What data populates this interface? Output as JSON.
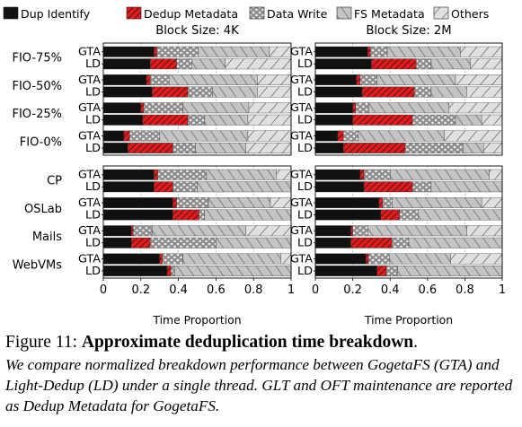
{
  "legend": [
    {
      "key": "dup",
      "label": "Dup Identify",
      "color": "#111111",
      "pattern": "solid"
    },
    {
      "key": "meta",
      "label": "Dedup Metadata",
      "color": "#e41a1c",
      "pattern": "hatch"
    },
    {
      "key": "write",
      "label": "Data Write",
      "color": "#8c8c8c",
      "pattern": "dots"
    },
    {
      "key": "fs",
      "label": "FS Metadata",
      "color": "#c4c4c4",
      "pattern": "slash"
    },
    {
      "key": "other",
      "label": "Others",
      "color": "#e0e0e0",
      "pattern": "backslash"
    }
  ],
  "caption": {
    "label": "Figure 11:",
    "title": "Approximate deduplication time breakdown",
    "period": ".",
    "body": "We compare normalized breakdown performance between GogetaFS (GTA) and Light-Dedup (LD) under a single thread. GLT and OFT maintenance are reported as Dedup Metadata for GogetaFS."
  },
  "chart_data": [
    {
      "type": "bar",
      "orientation": "horizontal",
      "stacked": true,
      "title": "Block Size: 4K",
      "xlabel": "Time Proportion",
      "xlim": [
        0,
        1
      ],
      "xticks": [
        "0",
        "0.2",
        "0.4",
        "0.6",
        "0.8",
        "1"
      ],
      "grid": "vertical dotted",
      "groups": [
        {
          "name": "FIO-75%",
          "bars": [
            {
              "system": "GTA",
              "segments": [
                0.27,
                0.015,
                0.22,
                0.38,
                0.115
              ]
            },
            {
              "system": "LD",
              "segments": [
                0.25,
                0.14,
                0.08,
                0.18,
                0.35
              ]
            }
          ]
        },
        {
          "name": "FIO-50%",
          "bars": [
            {
              "system": "GTA",
              "segments": [
                0.23,
                0.02,
                0.1,
                0.47,
                0.18
              ]
            },
            {
              "system": "LD",
              "segments": [
                0.26,
                0.19,
                0.13,
                0.24,
                0.18
              ]
            }
          ]
        },
        {
          "name": "FIO-25%",
          "bars": [
            {
              "system": "GTA",
              "segments": [
                0.2,
                0.015,
                0.21,
                0.35,
                0.225
              ]
            },
            {
              "system": "LD",
              "segments": [
                0.21,
                0.24,
                0.09,
                0.23,
                0.23
              ]
            }
          ]
        },
        {
          "name": "FIO-0%",
          "bars": [
            {
              "system": "GTA",
              "segments": [
                0.11,
                0.03,
                0.16,
                0.47,
                0.23
              ]
            },
            {
              "system": "LD",
              "segments": [
                0.13,
                0.24,
                0.12,
                0.27,
                0.24
              ]
            }
          ]
        }
      ]
    },
    {
      "type": "bar",
      "orientation": "horizontal",
      "stacked": true,
      "title": "Block Size: 2M",
      "xlabel": "Time Proportion",
      "xlim": [
        0,
        1
      ],
      "xticks": [
        "0",
        "0.2",
        "0.4",
        "0.6",
        "0.8",
        "1"
      ],
      "grid": "vertical dotted",
      "groups": [
        {
          "name": "FIO-75%",
          "bars": [
            {
              "system": "GTA",
              "segments": [
                0.28,
                0.015,
                0.09,
                0.39,
                0.225
              ]
            },
            {
              "system": "LD",
              "segments": [
                0.3,
                0.24,
                0.08,
                0.21,
                0.17
              ]
            }
          ]
        },
        {
          "name": "FIO-50%",
          "bars": [
            {
              "system": "GTA",
              "segments": [
                0.22,
                0.02,
                0.09,
                0.42,
                0.25
              ]
            },
            {
              "system": "LD",
              "segments": [
                0.25,
                0.28,
                0.09,
                0.19,
                0.19
              ]
            }
          ]
        },
        {
          "name": "FIO-25%",
          "bars": [
            {
              "system": "GTA",
              "segments": [
                0.2,
                0.015,
                0.07,
                0.43,
                0.285
              ]
            },
            {
              "system": "LD",
              "segments": [
                0.2,
                0.32,
                0.23,
                0.14,
                0.11
              ]
            }
          ]
        },
        {
          "name": "FIO-0%",
          "bars": [
            {
              "system": "GTA",
              "segments": [
                0.12,
                0.03,
                0.08,
                0.46,
                0.31
              ]
            },
            {
              "system": "LD",
              "segments": [
                0.15,
                0.33,
                0.31,
                0.11,
                0.1
              ]
            }
          ]
        }
      ]
    },
    {
      "type": "bar",
      "orientation": "horizontal",
      "stacked": true,
      "title": "",
      "xlabel": "Time Proportion",
      "xlim": [
        0,
        1
      ],
      "xticks": [
        "0",
        "0.2",
        "0.4",
        "0.6",
        "0.8",
        "1"
      ],
      "grid": "vertical dotted",
      "groups": [
        {
          "name": "CP",
          "bars": [
            {
              "system": "GTA",
              "segments": [
                0.27,
                0.02,
                0.26,
                0.37,
                0.08
              ]
            },
            {
              "system": "LD",
              "segments": [
                0.27,
                0.1,
                0.13,
                0.5,
                0
              ]
            }
          ]
        },
        {
          "name": "OSLab",
          "bars": [
            {
              "system": "GTA",
              "segments": [
                0.37,
                0.02,
                0.17,
                0.33,
                0.11
              ]
            },
            {
              "system": "LD",
              "segments": [
                0.37,
                0.14,
                0.03,
                0.46,
                0
              ]
            }
          ]
        },
        {
          "name": "Mails",
          "bars": [
            {
              "system": "GTA",
              "segments": [
                0.15,
                0.01,
                0.1,
                0.5,
                0.24
              ]
            },
            {
              "system": "LD",
              "segments": [
                0.15,
                0.1,
                0.35,
                0.4,
                0
              ]
            }
          ]
        },
        {
          "name": "WebVMs",
          "bars": [
            {
              "system": "GTA",
              "segments": [
                0.3,
                0.015,
                0.11,
                0.52,
                0.055
              ]
            },
            {
              "system": "LD",
              "segments": [
                0.34,
                0.02,
                0.02,
                0.62,
                0
              ]
            }
          ]
        }
      ]
    },
    {
      "type": "bar",
      "orientation": "horizontal",
      "stacked": true,
      "title": "",
      "xlabel": "Time Proportion",
      "xlim": [
        0,
        1
      ],
      "xticks": [
        "0",
        "0.2",
        "0.4",
        "0.6",
        "0.8",
        "1"
      ],
      "grid": "vertical dotted",
      "groups": [
        {
          "name": "CP",
          "bars": [
            {
              "system": "GTA",
              "segments": [
                0.24,
                0.02,
                0.14,
                0.53,
                0.07
              ]
            },
            {
              "system": "LD",
              "segments": [
                0.26,
                0.26,
                0.1,
                0.38,
                0
              ]
            }
          ]
        },
        {
          "name": "OSLab",
          "bars": [
            {
              "system": "GTA",
              "segments": [
                0.34,
                0.02,
                0.05,
                0.48,
                0.11
              ]
            },
            {
              "system": "LD",
              "segments": [
                0.35,
                0.1,
                0.1,
                0.45,
                0
              ]
            }
          ]
        },
        {
          "name": "Mails",
          "bars": [
            {
              "system": "GTA",
              "segments": [
                0.19,
                0.01,
                0.08,
                0.53,
                0.19
              ]
            },
            {
              "system": "LD",
              "segments": [
                0.19,
                0.22,
                0.09,
                0.5,
                0
              ]
            }
          ]
        },
        {
          "name": "WebVMs",
          "bars": [
            {
              "system": "GTA",
              "segments": [
                0.27,
                0.015,
                0.11,
                0.33,
                0.275
              ]
            },
            {
              "system": "LD",
              "segments": [
                0.33,
                0.05,
                0.06,
                0.56,
                0
              ]
            }
          ]
        }
      ]
    }
  ]
}
